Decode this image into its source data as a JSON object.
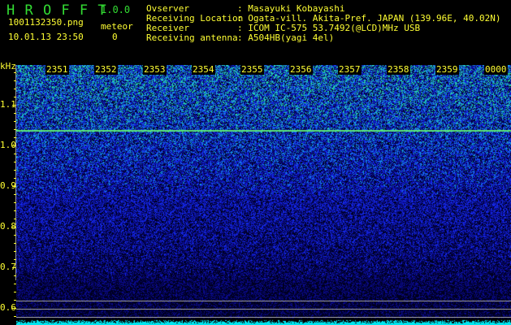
{
  "app": {
    "title": "H R O F F T",
    "version": "1.0.0"
  },
  "file": {
    "name": "1001132350.png",
    "datetime": "10.01.13 23:50"
  },
  "meteor": {
    "label": "meteor",
    "count": "0"
  },
  "info": [
    {
      "label": "Ovserver",
      "value": ": Masayuki Kobayashi"
    },
    {
      "label": "Receiving Location",
      "value": ": Ogata-vill. Akita-Pref. JAPAN (139.96E, 40.02N)"
    },
    {
      "label": "Receiver",
      "value": ": ICOM IC-575 53.7492(@LCD)MHz USB"
    },
    {
      "label": "Receiving antenna",
      "value": ": A504HB(yagi 4el)"
    }
  ],
  "axis": {
    "unit": "kHz",
    "freq_labels": [
      "1.1",
      "1.0",
      "0.9",
      "0.8",
      "0.7",
      "0.6"
    ],
    "time_labels": [
      "2351",
      "2352",
      "2353",
      "2354",
      "2355",
      "2356",
      "2357",
      "2358",
      "2359",
      "0000"
    ]
  },
  "colors": {
    "text": "#ffff33",
    "title": "#33dd33",
    "signal_line": "#66ff66",
    "histogram": "#00ffff"
  }
}
